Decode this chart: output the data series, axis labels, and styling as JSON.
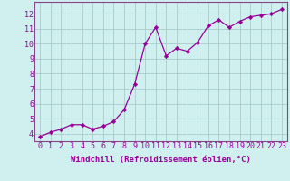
{
  "x": [
    0,
    1,
    2,
    3,
    4,
    5,
    6,
    7,
    8,
    9,
    10,
    11,
    12,
    13,
    14,
    15,
    16,
    17,
    18,
    19,
    20,
    21,
    22,
    23
  ],
  "y": [
    3.8,
    4.1,
    4.3,
    4.6,
    4.6,
    4.3,
    4.5,
    4.8,
    5.6,
    7.3,
    10.0,
    11.1,
    9.2,
    9.7,
    9.5,
    10.1,
    11.2,
    11.6,
    11.1,
    11.5,
    11.8,
    11.9,
    12.0,
    12.3
  ],
  "line_color": "#990099",
  "marker": "D",
  "marker_size": 2.2,
  "bg_color": "#cff0ee",
  "grid_color": "#aacccc",
  "xlabel": "Windchill (Refroidissement éolien,°C)",
  "ylabel_ticks": [
    4,
    5,
    6,
    7,
    8,
    9,
    10,
    11,
    12
  ],
  "xlim": [
    -0.5,
    23.5
  ],
  "ylim": [
    3.5,
    12.8
  ],
  "xlabel_fontsize": 6.5,
  "tick_fontsize": 6.0,
  "tick_color": "#990099",
  "xlabel_color": "#990099",
  "spine_color": "#884488"
}
